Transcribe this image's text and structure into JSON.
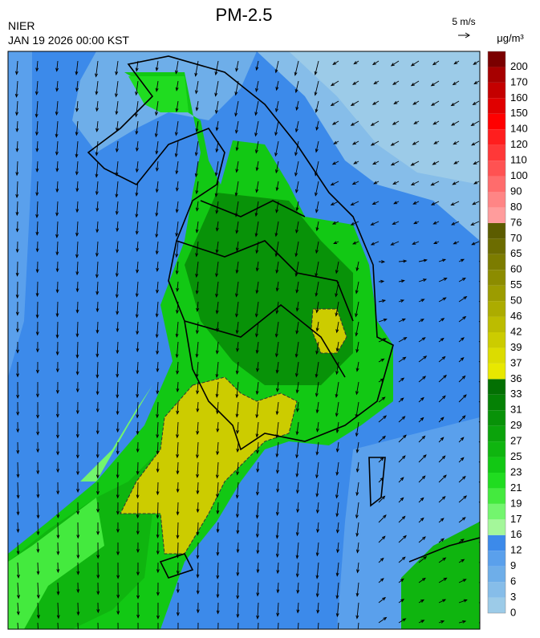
{
  "header": {
    "title": "PM-2.5",
    "org": "NIER",
    "datetime": "JAN 19 2026 00:00 KST"
  },
  "wind_legend": {
    "label": "5 m/s"
  },
  "colorbar": {
    "unit": "μg/m³",
    "levels": [
      0,
      3,
      6,
      9,
      12,
      16,
      17,
      19,
      21,
      23,
      25,
      27,
      29,
      31,
      33,
      36,
      37,
      39,
      42,
      46,
      50,
      55,
      60,
      65,
      70,
      76,
      80,
      90,
      100,
      110,
      120,
      140,
      150,
      160,
      170,
      200
    ],
    "colors": [
      "#9ccbe8",
      "#86bde9",
      "#6eaee9",
      "#5aa0ec",
      "#3c8aea",
      "#a4f79a",
      "#73f56e",
      "#44ea3e",
      "#20dc20",
      "#12c814",
      "#0fb50f",
      "#0ba30b",
      "#089208",
      "#058105",
      "#037003",
      "#e8e800",
      "#dcdc00",
      "#cccc00",
      "#bcbc00",
      "#acac00",
      "#9c9c00",
      "#8c8c00",
      "#7c7c00",
      "#6c6c00",
      "#5c5c00",
      "#ff9c9c",
      "#ff8585",
      "#ff6c6c",
      "#ff5252",
      "#ff3838",
      "#ff1e1e",
      "#ff0000",
      "#e00000",
      "#c40000",
      "#a60000",
      "#7a0000"
    ]
  }
}
